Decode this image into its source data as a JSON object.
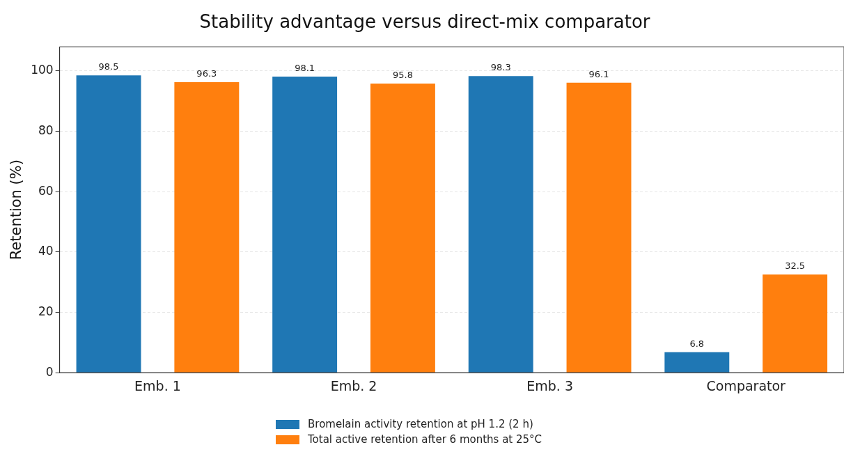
{
  "chart_data": {
    "type": "bar",
    "title": "Stability advantage versus direct-mix comparator",
    "ylabel": "Retention (%)",
    "categories": [
      "Emb. 1",
      "Emb. 2",
      "Emb. 3",
      "Comparator"
    ],
    "series": [
      {
        "name": "Bromelain activity retention at pH 1.2 (2 h)",
        "color": "#1f77b4",
        "values": [
          98.5,
          98.1,
          98.3,
          6.8
        ]
      },
      {
        "name": "Total active retention after 6 months at 25°C",
        "color": "#ff7f0e",
        "values": [
          96.3,
          95.8,
          96.1,
          32.5
        ]
      }
    ],
    "ylim": [
      0,
      108
    ],
    "yticks": [
      0,
      20,
      40,
      60,
      80,
      100
    ],
    "grid": "y",
    "legend": "bottom",
    "data_labels": true
  }
}
